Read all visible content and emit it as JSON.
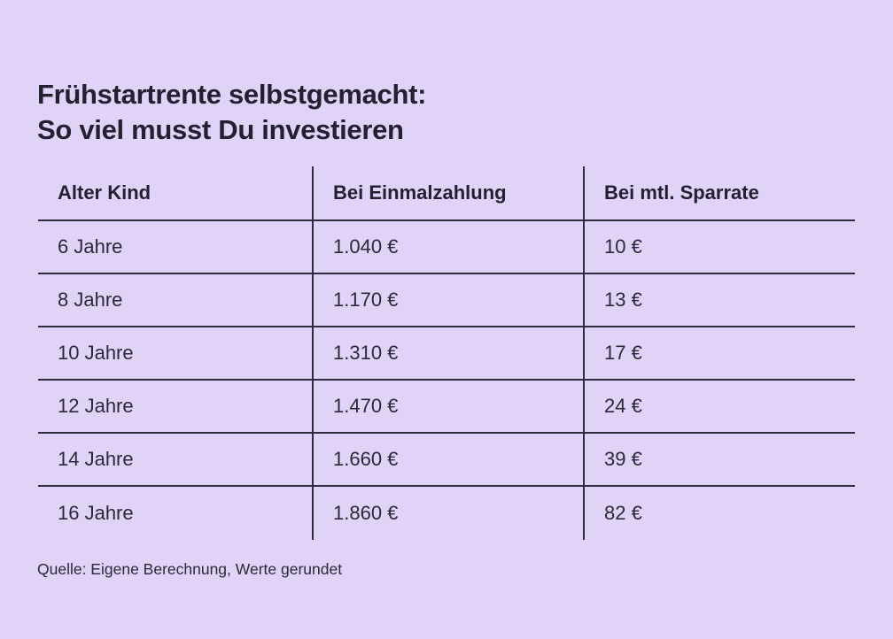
{
  "title": "Frühstartrente selbstgemacht:\nSo viel musst Du investieren",
  "source": "Quelle: Eigene Berechnung, Werte gerundet",
  "colors": {
    "background": "#e1d3f8",
    "text": "#262330",
    "line": "#2e2b3c"
  },
  "chart_data": {
    "type": "table",
    "title": "Frühstartrente selbstgemacht: So viel musst Du investieren",
    "columns": [
      "Alter Kind",
      "Bei Einmalzahlung",
      "Bei mtl. Sparrate"
    ],
    "rows": [
      [
        "6 Jahre",
        "1.040 €",
        "10 €"
      ],
      [
        "8 Jahre",
        "1.170 €",
        "13 €"
      ],
      [
        "10 Jahre",
        "1.310 €",
        "17 €"
      ],
      [
        "12 Jahre",
        "1.470 €",
        "24 €"
      ],
      [
        "14 Jahre",
        "1.660 €",
        "39 €"
      ],
      [
        "16 Jahre",
        "1.860 €",
        "82 €"
      ]
    ],
    "source": "Quelle: Eigene Berechnung, Werte gerundet",
    "legend": null,
    "grid": "row-separators-and-column-separators"
  }
}
